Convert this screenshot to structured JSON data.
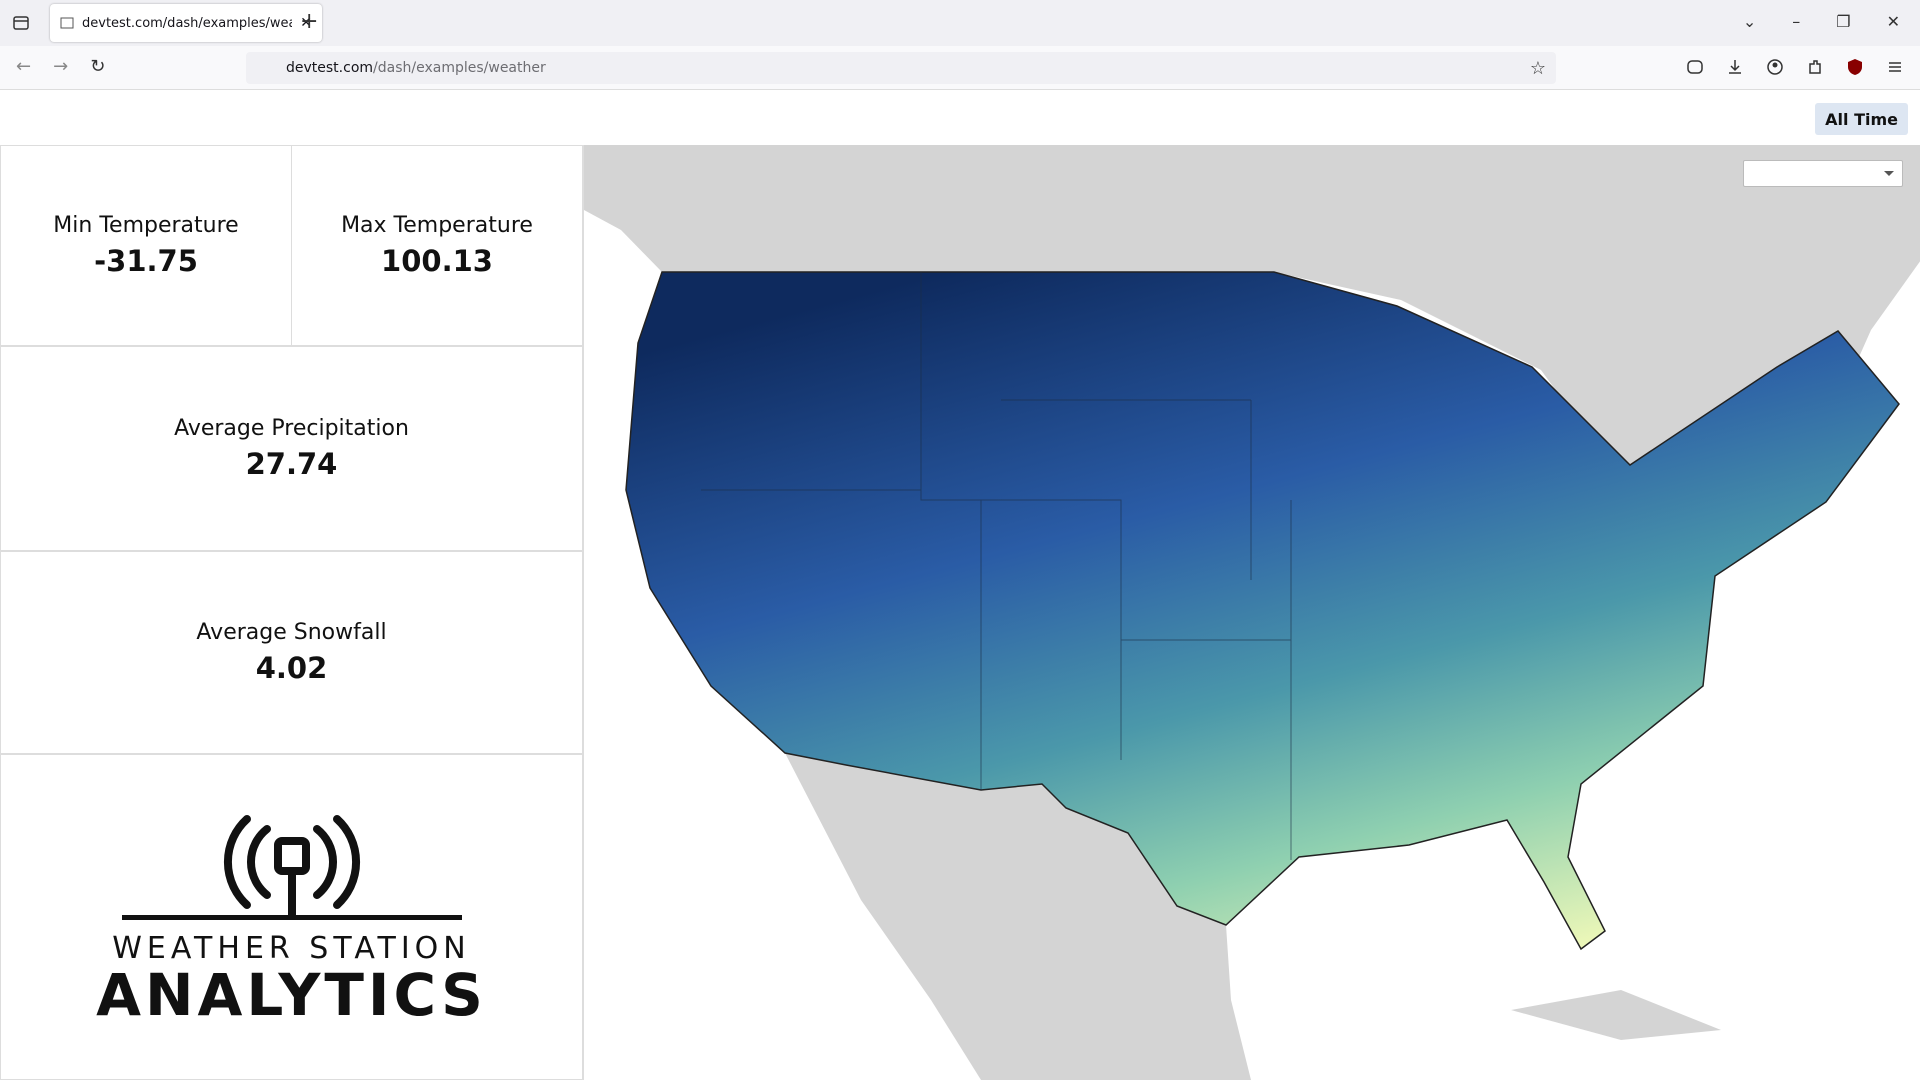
{
  "browser": {
    "tab_title": "devtest.com/dash/examples/weather",
    "url": {
      "host": "devtest.com",
      "path": "/dash/examples/weather"
    }
  },
  "header": {
    "button": "All Time"
  },
  "cards": [
    {
      "label": "Min Temperature",
      "value": -31.75
    },
    {
      "label": "Max Temperature",
      "value": 100.13
    },
    {
      "label": "Average Precipitation",
      "value": 27.74
    },
    {
      "label": "Average Snowfall",
      "value": 4.02
    }
  ],
  "logo": {
    "line1": "WEATHER STATION",
    "line2": "ANALYTICS"
  }
}
